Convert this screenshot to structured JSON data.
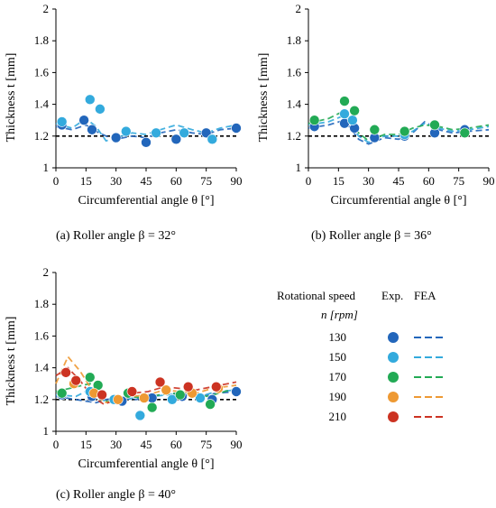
{
  "chart_data": [
    {
      "type": "scatter",
      "id": "a",
      "caption": "(a) Roller angle β = 32°",
      "xlabel": "Circumferential angle θ [°]",
      "ylabel": "Thickness t [mm]",
      "xlim": [
        0,
        90
      ],
      "ylim": [
        1,
        2
      ],
      "xticks": [
        0,
        15,
        30,
        45,
        60,
        75,
        90
      ],
      "yticks": [
        1,
        1.2,
        1.4,
        1.6,
        1.8,
        2
      ],
      "reference_line": 1.2,
      "series": [
        {
          "name": "130",
          "exp": [
            [
              3,
              1.27
            ],
            [
              14,
              1.3
            ],
            [
              18,
              1.24
            ],
            [
              30,
              1.19
            ],
            [
              45,
              1.16
            ],
            [
              60,
              1.18
            ],
            [
              75,
              1.22
            ],
            [
              90,
              1.25
            ]
          ],
          "fea": [
            [
              0,
              1.26
            ],
            [
              8,
              1.24
            ],
            [
              15,
              1.27
            ],
            [
              20,
              1.23
            ],
            [
              25,
              1.2
            ],
            [
              30,
              1.18
            ],
            [
              38,
              1.2
            ],
            [
              45,
              1.19
            ],
            [
              52,
              1.22
            ],
            [
              60,
              1.24
            ],
            [
              68,
              1.22
            ],
            [
              75,
              1.21
            ],
            [
              82,
              1.24
            ],
            [
              90,
              1.25
            ]
          ]
        },
        {
          "name": "150",
          "exp": [
            [
              3,
              1.29
            ],
            [
              17,
              1.43
            ],
            [
              22,
              1.37
            ],
            [
              35,
              1.23
            ],
            [
              50,
              1.22
            ],
            [
              64,
              1.22
            ],
            [
              78,
              1.18
            ]
          ],
          "fea": [
            [
              0,
              1.28
            ],
            [
              8,
              1.25
            ],
            [
              15,
              1.31
            ],
            [
              20,
              1.26
            ],
            [
              25,
              1.17
            ],
            [
              30,
              1.19
            ],
            [
              38,
              1.22
            ],
            [
              45,
              1.21
            ],
            [
              52,
              1.24
            ],
            [
              60,
              1.27
            ],
            [
              68,
              1.24
            ],
            [
              75,
              1.22
            ],
            [
              82,
              1.25
            ],
            [
              90,
              1.27
            ]
          ]
        }
      ]
    },
    {
      "type": "scatter",
      "id": "b",
      "caption": "(b) Roller angle β = 36°",
      "xlabel": "Circumferential angle θ [°]",
      "ylabel": "Thickness t [mm]",
      "xlim": [
        0,
        90
      ],
      "ylim": [
        1,
        2
      ],
      "xticks": [
        0,
        15,
        30,
        45,
        60,
        75,
        90
      ],
      "yticks": [
        1,
        1.2,
        1.4,
        1.6,
        1.8,
        2
      ],
      "reference_line": 1.2,
      "series": [
        {
          "name": "130",
          "exp": [
            [
              3,
              1.26
            ],
            [
              18,
              1.28
            ],
            [
              23,
              1.25
            ],
            [
              33,
              1.19
            ],
            [
              48,
              1.2
            ],
            [
              63,
              1.22
            ],
            [
              78,
              1.24
            ]
          ],
          "fea": [
            [
              0,
              1.25
            ],
            [
              10,
              1.27
            ],
            [
              18,
              1.3
            ],
            [
              25,
              1.18
            ],
            [
              30,
              1.15
            ],
            [
              38,
              1.19
            ],
            [
              45,
              1.18
            ],
            [
              52,
              1.22
            ],
            [
              58,
              1.29
            ],
            [
              65,
              1.24
            ],
            [
              72,
              1.22
            ],
            [
              80,
              1.23
            ],
            [
              90,
              1.24
            ]
          ]
        },
        {
          "name": "150",
          "exp": [
            [
              18,
              1.34
            ],
            [
              22,
              1.3
            ],
            [
              48,
              1.21
            ]
          ],
          "fea": [
            [
              0,
              1.27
            ],
            [
              10,
              1.29
            ],
            [
              18,
              1.33
            ],
            [
              25,
              1.2
            ],
            [
              30,
              1.16
            ],
            [
              38,
              1.2
            ],
            [
              45,
              1.2
            ],
            [
              52,
              1.23
            ],
            [
              58,
              1.28
            ],
            [
              65,
              1.25
            ],
            [
              72,
              1.23
            ],
            [
              80,
              1.24
            ],
            [
              90,
              1.26
            ]
          ]
        },
        {
          "name": "170",
          "exp": [
            [
              3,
              1.3
            ],
            [
              18,
              1.42
            ],
            [
              23,
              1.36
            ],
            [
              33,
              1.24
            ],
            [
              48,
              1.23
            ],
            [
              63,
              1.27
            ],
            [
              78,
              1.22
            ]
          ],
          "fea": [
            [
              0,
              1.28
            ],
            [
              10,
              1.31
            ],
            [
              18,
              1.36
            ],
            [
              25,
              1.22
            ],
            [
              30,
              1.17
            ],
            [
              38,
              1.21
            ],
            [
              45,
              1.21
            ],
            [
              52,
              1.25
            ],
            [
              58,
              1.27
            ],
            [
              65,
              1.26
            ],
            [
              72,
              1.24
            ],
            [
              80,
              1.25
            ],
            [
              90,
              1.27
            ]
          ]
        }
      ]
    },
    {
      "type": "scatter",
      "id": "c",
      "caption": "(c) Roller angle β = 40°",
      "xlabel": "Circumferential angle θ [°]",
      "ylabel": "Thickness t [mm]",
      "xlim": [
        0,
        90
      ],
      "ylim": [
        1,
        2
      ],
      "xticks": [
        0,
        15,
        30,
        45,
        60,
        75,
        90
      ],
      "yticks": [
        1,
        1.2,
        1.4,
        1.6,
        1.8,
        2
      ],
      "reference_line": 1.2,
      "series": [
        {
          "name": "130",
          "exp": [
            [
              3,
              1.23
            ],
            [
              18,
              1.22
            ],
            [
              33,
              1.19
            ],
            [
              48,
              1.21
            ],
            [
              63,
              1.22
            ],
            [
              78,
              1.2
            ],
            [
              90,
              1.25
            ]
          ],
          "fea": [
            [
              0,
              1.22
            ],
            [
              10,
              1.2
            ],
            [
              20,
              1.18
            ],
            [
              25,
              1.2
            ],
            [
              32,
              1.21
            ],
            [
              40,
              1.2
            ],
            [
              48,
              1.22
            ],
            [
              56,
              1.24
            ],
            [
              64,
              1.23
            ],
            [
              72,
              1.22
            ],
            [
              80,
              1.24
            ],
            [
              90,
              1.25
            ]
          ]
        },
        {
          "name": "150",
          "exp": [
            [
              17,
              1.25
            ],
            [
              29,
              1.2
            ],
            [
              42,
              1.1
            ],
            [
              58,
              1.2
            ],
            [
              72,
              1.21
            ]
          ],
          "fea": [
            [
              0,
              1.23
            ],
            [
              10,
              1.22
            ],
            [
              18,
              1.27
            ],
            [
              25,
              1.18
            ],
            [
              32,
              1.2
            ],
            [
              40,
              1.21
            ],
            [
              48,
              1.22
            ],
            [
              56,
              1.23
            ],
            [
              64,
              1.24
            ],
            [
              72,
              1.22
            ],
            [
              80,
              1.25
            ],
            [
              90,
              1.26
            ]
          ]
        },
        {
          "name": "170",
          "exp": [
            [
              3,
              1.24
            ],
            [
              17,
              1.34
            ],
            [
              21,
              1.29
            ],
            [
              36,
              1.24
            ],
            [
              48,
              1.15
            ],
            [
              62,
              1.23
            ],
            [
              77,
              1.17
            ]
          ],
          "fea": [
            [
              0,
              1.25
            ],
            [
              10,
              1.28
            ],
            [
              17,
              1.3
            ],
            [
              22,
              1.2
            ],
            [
              28,
              1.18
            ],
            [
              36,
              1.22
            ],
            [
              44,
              1.21
            ],
            [
              52,
              1.23
            ],
            [
              60,
              1.24
            ],
            [
              68,
              1.23
            ],
            [
              76,
              1.22
            ],
            [
              84,
              1.25
            ],
            [
              90,
              1.27
            ]
          ]
        },
        {
          "name": "190",
          "exp": [
            [
              9,
              1.3
            ],
            [
              19,
              1.24
            ],
            [
              31,
              1.2
            ],
            [
              44,
              1.21
            ],
            [
              55,
              1.26
            ],
            [
              68,
              1.24
            ],
            [
              81,
              1.27
            ]
          ],
          "fea": [
            [
              0,
              1.3
            ],
            [
              6,
              1.47
            ],
            [
              12,
              1.38
            ],
            [
              18,
              1.26
            ],
            [
              24,
              1.18
            ],
            [
              30,
              1.19
            ],
            [
              38,
              1.22
            ],
            [
              46,
              1.23
            ],
            [
              54,
              1.26
            ],
            [
              62,
              1.25
            ],
            [
              70,
              1.24
            ],
            [
              78,
              1.27
            ],
            [
              90,
              1.29
            ]
          ]
        },
        {
          "name": "210",
          "exp": [
            [
              5,
              1.37
            ],
            [
              10,
              1.32
            ],
            [
              23,
              1.23
            ],
            [
              38,
              1.25
            ],
            [
              52,
              1.31
            ],
            [
              66,
              1.28
            ],
            [
              80,
              1.28
            ]
          ],
          "fea": [
            [
              0,
              1.35
            ],
            [
              6,
              1.4
            ],
            [
              12,
              1.32
            ],
            [
              18,
              1.22
            ],
            [
              24,
              1.17
            ],
            [
              30,
              1.2
            ],
            [
              38,
              1.24
            ],
            [
              46,
              1.25
            ],
            [
              54,
              1.28
            ],
            [
              62,
              1.27
            ],
            [
              70,
              1.26
            ],
            [
              78,
              1.28
            ],
            [
              90,
              1.31
            ]
          ]
        }
      ]
    }
  ],
  "legend": {
    "title_line1": "Rotational speed",
    "title_line2": "n [rpm]",
    "exp_header": "Exp.",
    "fea_header": "FEA",
    "entries": [
      "130",
      "150",
      "170",
      "190",
      "210"
    ]
  },
  "colors": {
    "130": "#2266bb",
    "150": "#33aadd",
    "170": "#22aa55",
    "190": "#ee9933",
    "210": "#cc3322",
    "reference": "#000000"
  }
}
